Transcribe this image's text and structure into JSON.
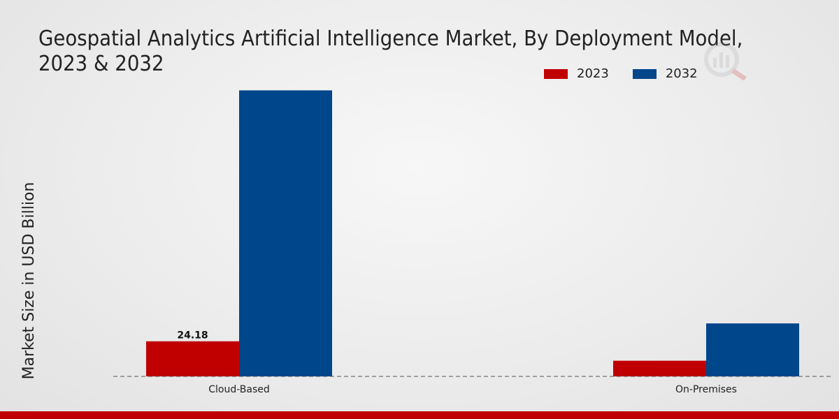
{
  "chart_data": {
    "type": "bar",
    "title": "Geospatial Analytics Artificial Intelligence Market, By Deployment Model, 2023 & 2032",
    "xlabel": "",
    "ylabel": "Market Size in USD Billion",
    "categories": [
      "Cloud-Based",
      "On-Premises"
    ],
    "series": [
      {
        "name": "2023",
        "color": "#c00000",
        "values": [
          24.18,
          10.8
        ]
      },
      {
        "name": "2032",
        "color": "#00468b",
        "values": [
          197.0,
          36.5
        ]
      }
    ],
    "data_labels": [
      {
        "series": 0,
        "category": 0,
        "text": "24.18"
      }
    ],
    "ylim": [
      0,
      240
    ],
    "grid": false,
    "legend_position": "top-right"
  },
  "colors": {
    "bottom_bar": "#c00000",
    "axis_line": "#555555"
  },
  "watermark_icon": "market-research-logo-icon"
}
